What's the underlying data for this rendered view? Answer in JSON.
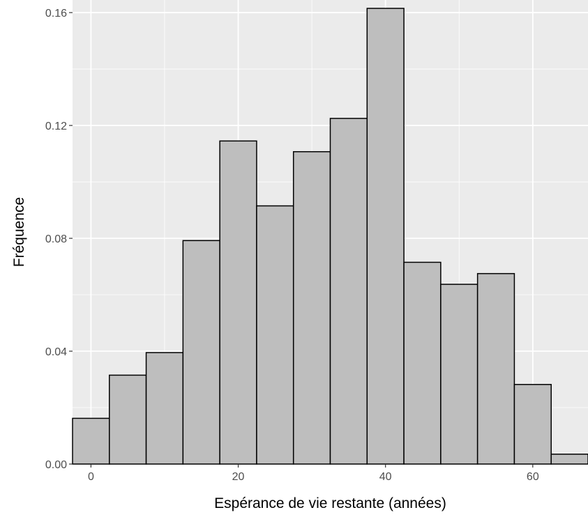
{
  "chart_data": {
    "type": "bar",
    "title": "",
    "xlabel": "Espérance de vie restante (années)",
    "ylabel": "Fréquence",
    "xlim": [
      -2.5,
      67.5
    ],
    "ylim": [
      0,
      0.1615
    ],
    "x_ticks": [
      0,
      20,
      40,
      60
    ],
    "x_tick_labels": [
      "0",
      "20",
      "40",
      "60"
    ],
    "y_ticks": [
      0,
      0.04,
      0.08,
      0.12,
      0.16
    ],
    "y_tick_labels": [
      "0.00",
      "0.04",
      "0.08",
      "0.12",
      "0.16"
    ],
    "bin_edges": [
      -2.5,
      2.5,
      7.5,
      12.5,
      17.5,
      22.5,
      27.5,
      32.5,
      37.5,
      42.5,
      47.5,
      52.5,
      57.5,
      62.5,
      67.5
    ],
    "values": [
      0.0162,
      0.0315,
      0.0395,
      0.0792,
      0.1145,
      0.0915,
      0.1107,
      0.1225,
      0.1615,
      0.0715,
      0.0637,
      0.0675,
      0.0282,
      0.0035
    ],
    "grid": true,
    "colors": {
      "panel_background": "#ebebeb",
      "grid": "#ffffff",
      "bar_fill": "#bebebe",
      "bar_stroke": "#000000"
    }
  }
}
